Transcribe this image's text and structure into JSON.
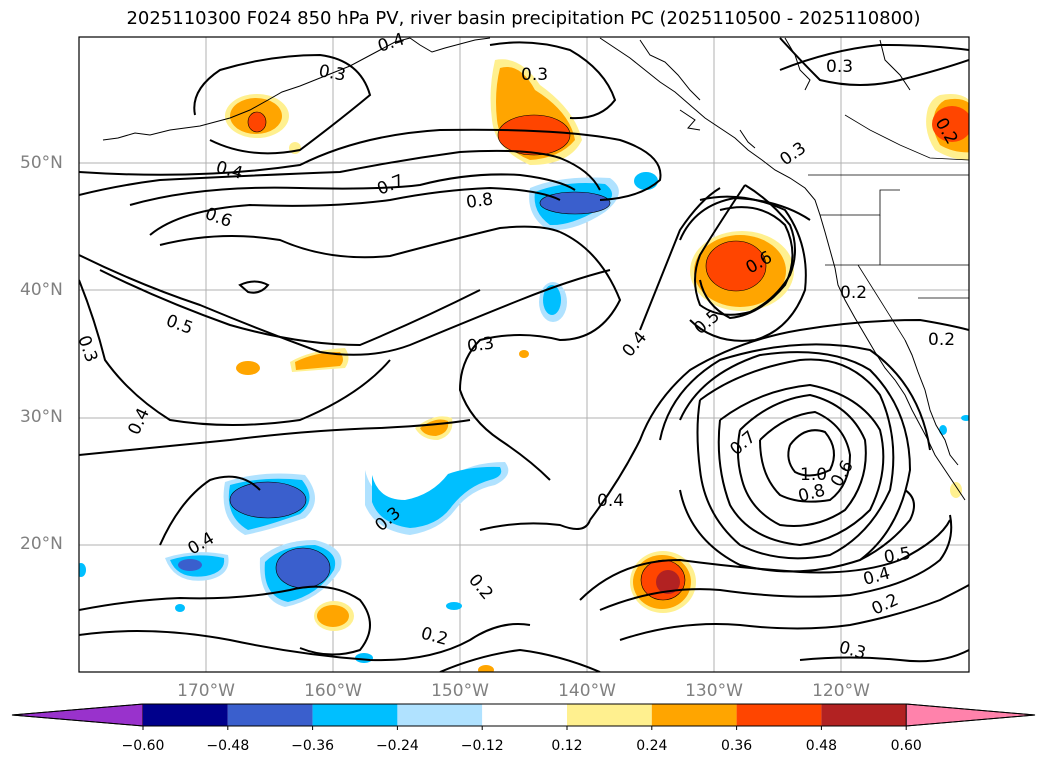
{
  "title": "2025110300 F024 850 hPa PV, river basin precipitation PC (2025110500 - 2025110800)",
  "lat_labels": [
    "50°N",
    "40°N",
    "30°N",
    "20°N"
  ],
  "lon_labels": [
    "170°W",
    "160°W",
    "150°W",
    "140°W",
    "130°W",
    "120°W"
  ],
  "contour_labels": [
    "0.4",
    "0.3",
    "0.3",
    "0.3",
    "0.2",
    "0.4",
    "0.7",
    "0.8",
    "0.3",
    "0.6",
    "0.6",
    "0.5",
    "0.2",
    "0.2",
    "0.3",
    "0.5",
    "0.4",
    "0.3",
    "0.4",
    "0.7",
    "1.0",
    "0.8",
    "0.6",
    "0.4",
    "0.4",
    "0.5",
    "0.4",
    "0.2",
    "0.3",
    "0.2",
    "0.2",
    "0.3"
  ],
  "colorbar": {
    "ticks": [
      "−0.60",
      "−0.48",
      "−0.36",
      "−0.24",
      "−0.12",
      "0.12",
      "0.24",
      "0.36",
      "0.48",
      "0.60"
    ],
    "colors": [
      "#9932cc",
      "#00008b",
      "#3a5fcd",
      "#00bfff",
      "#b0e2ff",
      "#ffffff",
      "#fff08f",
      "#ffa500",
      "#ff4500",
      "#b22222",
      "#ff82ab"
    ]
  }
}
